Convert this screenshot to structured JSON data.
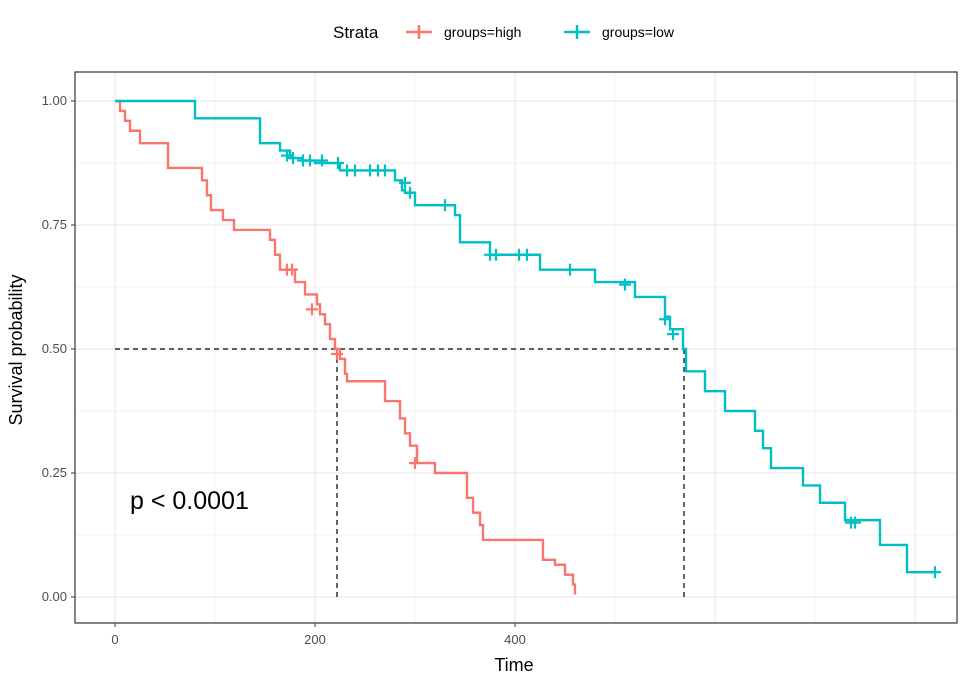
{
  "chart_data": {
    "type": "line",
    "xlabel": "Time",
    "ylabel": "Survival probability",
    "xlim": [
      -25,
      475
    ],
    "ylim": [
      -0.05,
      1.05
    ],
    "x_ticks": [
      0,
      200,
      400
    ],
    "x_tick_labels": [
      "0",
      "200",
      "400"
    ],
    "y_ticks": [
      0,
      0.25,
      0.5,
      0.75,
      1.0
    ],
    "y_tick_labels": [
      "0.00",
      "0.25",
      "0.50",
      "0.75",
      "1.00"
    ],
    "grid": true,
    "legend": {
      "title": "Strata",
      "position": "top"
    },
    "annotation": "p < 0.0001",
    "median_line_y": 0.5,
    "series": [
      {
        "name": "groups=high",
        "color": "#F8766D",
        "median_x": 222,
        "steps": [
          [
            0,
            1.0
          ],
          [
            5,
            0.98
          ],
          [
            10,
            0.96
          ],
          [
            15,
            0.94
          ],
          [
            25,
            0.915
          ],
          [
            53,
            0.865
          ],
          [
            87,
            0.84
          ],
          [
            92,
            0.81
          ],
          [
            96,
            0.78
          ],
          [
            108,
            0.76
          ],
          [
            119,
            0.74
          ],
          [
            155,
            0.72
          ],
          [
            160,
            0.69
          ],
          [
            165,
            0.66
          ],
          [
            180,
            0.635
          ],
          [
            190,
            0.61
          ],
          [
            202,
            0.59
          ],
          [
            205,
            0.57
          ],
          [
            210,
            0.55
          ],
          [
            215,
            0.52
          ],
          [
            220,
            0.5
          ],
          [
            225,
            0.48
          ],
          [
            230,
            0.45
          ],
          [
            232,
            0.435
          ],
          [
            270,
            0.395
          ],
          [
            285,
            0.36
          ],
          [
            290,
            0.33
          ],
          [
            295,
            0.305
          ],
          [
            302,
            0.27
          ],
          [
            320,
            0.25
          ],
          [
            352,
            0.2
          ],
          [
            358,
            0.17
          ],
          [
            365,
            0.145
          ],
          [
            368,
            0.115
          ],
          [
            428,
            0.075
          ],
          [
            440,
            0.065
          ],
          [
            450,
            0.045
          ],
          [
            458,
            0.025
          ],
          [
            460,
            0.005
          ]
        ],
        "censored": [
          [
            172,
            0.66
          ],
          [
            177,
            0.66
          ],
          [
            197,
            0.58
          ],
          [
            222,
            0.49
          ],
          [
            300,
            0.27
          ]
        ]
      },
      {
        "name": "groups=low",
        "color": "#00BFC4",
        "median_x": 569,
        "steps": [
          [
            0,
            1.0
          ],
          [
            80,
            0.965
          ],
          [
            145,
            0.915
          ],
          [
            165,
            0.9
          ],
          [
            175,
            0.885
          ],
          [
            187,
            0.88
          ],
          [
            200,
            0.875
          ],
          [
            225,
            0.86
          ],
          [
            280,
            0.84
          ],
          [
            287,
            0.82
          ],
          [
            290,
            0.815
          ],
          [
            300,
            0.79
          ],
          [
            340,
            0.77
          ],
          [
            345,
            0.715
          ],
          [
            375,
            0.69
          ],
          [
            425,
            0.66
          ],
          [
            480,
            0.635
          ],
          [
            520,
            0.605
          ],
          [
            550,
            0.565
          ],
          [
            555,
            0.54
          ],
          [
            568,
            0.5
          ],
          [
            571,
            0.455
          ],
          [
            590,
            0.415
          ],
          [
            610,
            0.375
          ],
          [
            640,
            0.335
          ],
          [
            648,
            0.3
          ],
          [
            656,
            0.26
          ],
          [
            688,
            0.225
          ],
          [
            705,
            0.19
          ],
          [
            730,
            0.155
          ],
          [
            765,
            0.105
          ],
          [
            792,
            0.05
          ],
          [
            820,
            0.05
          ]
        ],
        "censored": [
          [
            172,
            0.89
          ],
          [
            178,
            0.885
          ],
          [
            188,
            0.88
          ],
          [
            195,
            0.88
          ],
          [
            207,
            0.88
          ],
          [
            223,
            0.875
          ],
          [
            232,
            0.86
          ],
          [
            240,
            0.86
          ],
          [
            255,
            0.86
          ],
          [
            263,
            0.86
          ],
          [
            270,
            0.86
          ],
          [
            290,
            0.835
          ],
          [
            295,
            0.815
          ],
          [
            330,
            0.79
          ],
          [
            375,
            0.69
          ],
          [
            381,
            0.69
          ],
          [
            404,
            0.69
          ],
          [
            412,
            0.69
          ],
          [
            455,
            0.66
          ],
          [
            510,
            0.63
          ],
          [
            550,
            0.56
          ],
          [
            558,
            0.53
          ],
          [
            736,
            0.15
          ],
          [
            740,
            0.15
          ],
          [
            820,
            0.05
          ]
        ]
      }
    ]
  }
}
